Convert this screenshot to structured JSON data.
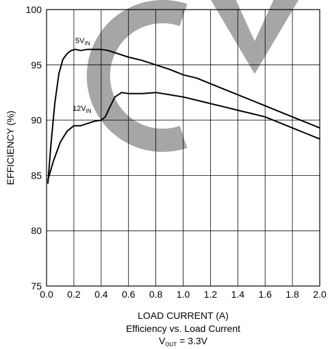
{
  "chart_data": {
    "type": "line",
    "xlabel": "LOAD CURRENT (A)",
    "ylabel": "EFFICIENCY (%)",
    "xlim": [
      0.0,
      2.0
    ],
    "ylim": [
      75,
      100
    ],
    "grid": true,
    "x_ticks": [
      "0.0",
      "0.2",
      "0.4",
      "0.6",
      "0.8",
      "1.0",
      "1.2",
      "1.4",
      "1.6",
      "1.8",
      "2.0"
    ],
    "y_ticks": [
      "75",
      "80",
      "85",
      "90",
      "95",
      "100"
    ],
    "caption": {
      "line1": "Efficiency vs. Load Current",
      "vout_main": "V",
      "vout_sub": "OUT",
      "vout_rest": " = 3.3V"
    },
    "series": [
      {
        "name": "5VIN",
        "label_main": "5V",
        "label_sub": "IN",
        "color": "#000000",
        "x": [
          0.01,
          0.03,
          0.06,
          0.09,
          0.12,
          0.15,
          0.18,
          0.21,
          0.25,
          0.3,
          0.35,
          0.4,
          0.45,
          0.5,
          0.6,
          0.7,
          0.8,
          0.9,
          1.0,
          1.1,
          1.2,
          1.3,
          1.4,
          1.5,
          1.6,
          1.7,
          1.8,
          1.9,
          2.0
        ],
        "y": [
          84.3,
          87.5,
          91.5,
          94.2,
          95.5,
          96.0,
          96.3,
          96.4,
          96.3,
          96.4,
          96.4,
          96.4,
          96.3,
          96.1,
          95.7,
          95.4,
          95.0,
          94.6,
          94.1,
          93.8,
          93.3,
          92.8,
          92.3,
          91.8,
          91.3,
          90.8,
          90.3,
          89.8,
          89.3
        ]
      },
      {
        "name": "12VIN",
        "label_main": "12V",
        "label_sub": "IN",
        "color": "#000000",
        "x": [
          0.01,
          0.05,
          0.1,
          0.15,
          0.2,
          0.25,
          0.3,
          0.35,
          0.4,
          0.43,
          0.46,
          0.5,
          0.55,
          0.6,
          0.7,
          0.8,
          0.9,
          1.0,
          1.1,
          1.2,
          1.3,
          1.4,
          1.5,
          1.6,
          1.7,
          1.8,
          1.9,
          2.0
        ],
        "y": [
          84.6,
          86.3,
          88.0,
          89.0,
          89.5,
          89.5,
          89.7,
          89.9,
          90.0,
          90.3,
          91.1,
          92.1,
          92.5,
          92.4,
          92.4,
          92.5,
          92.3,
          92.1,
          91.8,
          91.5,
          91.2,
          90.9,
          90.6,
          90.3,
          89.8,
          89.3,
          88.8,
          88.3
        ]
      }
    ]
  }
}
